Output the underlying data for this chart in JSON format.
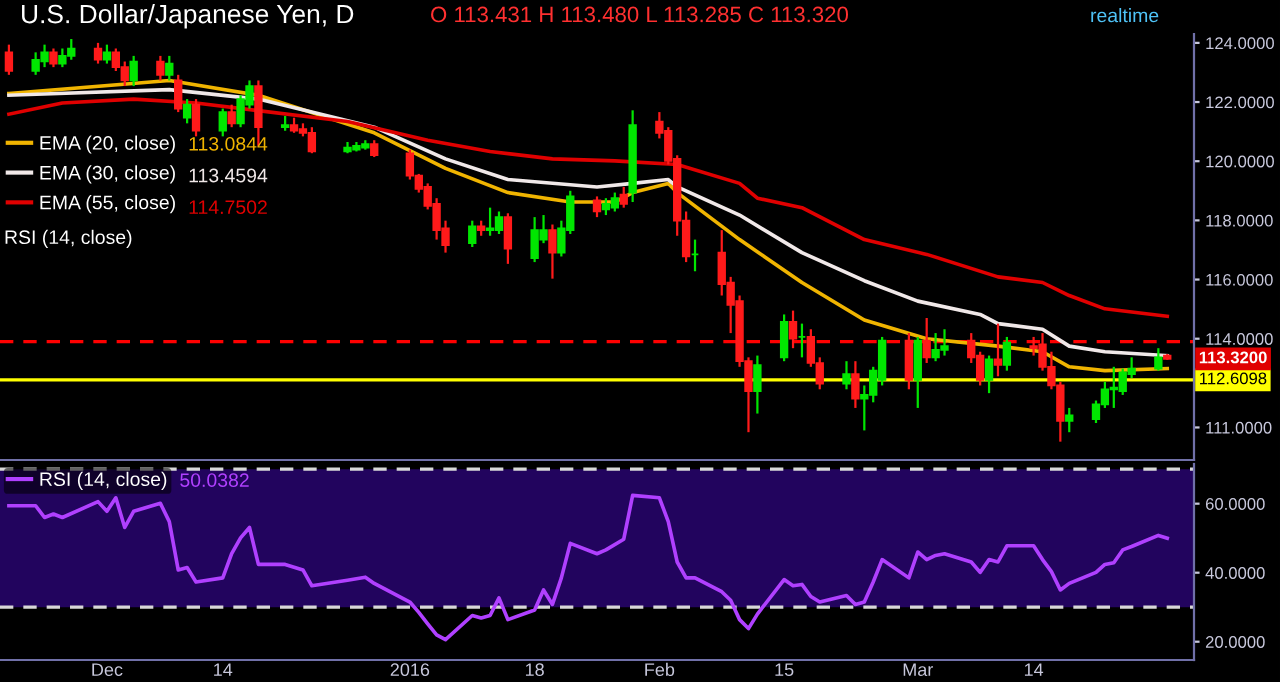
{
  "chart_data": [
    {
      "type": "candlestick",
      "title": "U.S. Dollar/Japanese Yen, D",
      "x": [
        "2015-11-20",
        "2015-11-23",
        "2015-11-24",
        "2015-11-25",
        "2015-11-26",
        "2015-11-27",
        "2015-11-30",
        "2015-12-01",
        "2015-12-02",
        "2015-12-03",
        "2015-12-04",
        "2015-12-07",
        "2015-12-08",
        "2015-12-09",
        "2015-12-10",
        "2015-12-11",
        "2015-12-14",
        "2015-12-15",
        "2015-12-16",
        "2015-12-17",
        "2015-12-18",
        "2015-12-21",
        "2015-12-22",
        "2015-12-23",
        "2015-12-24",
        "2015-12-28",
        "2015-12-29",
        "2015-12-30",
        "2015-12-31",
        "2016-01-04",
        "2016-01-05",
        "2016-01-06",
        "2016-01-07",
        "2016-01-08",
        "2016-01-11",
        "2016-01-12",
        "2016-01-13",
        "2016-01-14",
        "2016-01-15",
        "2016-01-18",
        "2016-01-19",
        "2016-01-20",
        "2016-01-21",
        "2016-01-22",
        "2016-01-25",
        "2016-01-26",
        "2016-01-27",
        "2016-01-28",
        "2016-01-29",
        "2016-02-01",
        "2016-02-02",
        "2016-02-03",
        "2016-02-04",
        "2016-02-05",
        "2016-02-08",
        "2016-02-09",
        "2016-02-10",
        "2016-02-11",
        "2016-02-12",
        "2016-02-15",
        "2016-02-16",
        "2016-02-17",
        "2016-02-18",
        "2016-02-19",
        "2016-02-22",
        "2016-02-23",
        "2016-02-24",
        "2016-02-25",
        "2016-02-26",
        "2016-02-29",
        "2016-03-01",
        "2016-03-02",
        "2016-03-03",
        "2016-03-04",
        "2016-03-07",
        "2016-03-08",
        "2016-03-09",
        "2016-03-10",
        "2016-03-11",
        "2016-03-14",
        "2016-03-15",
        "2016-03-16",
        "2016-03-17",
        "2016-03-18",
        "2016-03-21",
        "2016-03-22",
        "2016-03-23",
        "2016-03-24",
        "2016-03-25",
        "2016-03-28",
        "2016-03-29"
      ],
      "ohlc": [
        [
          123.68,
          123.94,
          122.92,
          123.05
        ],
        [
          123.05,
          123.68,
          122.92,
          123.43
        ],
        [
          123.37,
          123.94,
          123.18,
          123.68
        ],
        [
          123.68,
          123.81,
          123.18,
          123.3
        ],
        [
          123.3,
          123.81,
          123.18,
          123.56
        ],
        [
          123.56,
          124.13,
          123.43,
          123.81
        ],
        [
          123.81,
          124.0,
          123.3,
          123.43
        ],
        [
          123.43,
          123.94,
          123.3,
          123.68
        ],
        [
          123.68,
          123.81,
          123.05,
          123.18
        ],
        [
          123.18,
          123.37,
          122.54,
          122.73
        ],
        [
          122.73,
          123.56,
          122.54,
          123.37
        ],
        [
          123.37,
          123.56,
          122.73,
          122.92
        ],
        [
          122.92,
          123.56,
          122.73,
          123.3
        ],
        [
          122.73,
          122.92,
          121.66,
          121.78
        ],
        [
          121.47,
          122.1,
          121.28,
          121.91
        ],
        [
          121.91,
          122.1,
          120.84,
          121.03
        ],
        [
          121.03,
          121.78,
          120.84,
          121.66
        ],
        [
          121.66,
          121.91,
          121.15,
          121.28
        ],
        [
          121.28,
          122.23,
          121.15,
          122.1
        ],
        [
          121.91,
          122.73,
          121.78,
          122.54
        ],
        [
          122.54,
          122.73,
          120.52,
          121.15
        ],
        [
          121.15,
          121.53,
          121.03,
          121.22
        ],
        [
          121.22,
          121.47,
          120.96,
          121.03
        ],
        [
          121.09,
          121.28,
          120.84,
          120.96
        ],
        [
          120.96,
          121.15,
          120.27,
          120.33
        ],
        [
          120.33,
          120.65,
          120.27,
          120.46
        ],
        [
          120.39,
          120.65,
          120.33,
          120.52
        ],
        [
          120.46,
          120.71,
          120.39,
          120.58
        ],
        [
          120.58,
          120.71,
          120.14,
          120.2
        ],
        [
          120.27,
          120.39,
          119.38,
          119.51
        ],
        [
          119.51,
          119.57,
          118.94,
          119.06
        ],
        [
          119.13,
          119.25,
          118.37,
          118.49
        ],
        [
          118.56,
          118.75,
          117.35,
          117.67
        ],
        [
          117.73,
          117.99,
          116.91,
          117.16
        ],
        [
          117.23,
          117.99,
          117.1,
          117.8
        ],
        [
          117.8,
          117.99,
          117.48,
          117.67
        ],
        [
          117.67,
          118.43,
          117.48,
          117.73
        ],
        [
          117.67,
          118.3,
          117.54,
          118.11
        ],
        [
          118.11,
          118.24,
          116.53,
          117.04
        ],
        [
          116.72,
          118.11,
          116.59,
          117.67
        ],
        [
          117.35,
          118.18,
          117.23,
          117.67
        ],
        [
          117.67,
          117.86,
          116.03,
          116.91
        ],
        [
          116.91,
          117.99,
          116.78,
          117.73
        ],
        [
          117.67,
          119.0,
          117.54,
          118.81
        ],
        [
          118.68,
          118.81,
          118.11,
          118.3
        ],
        [
          118.37,
          118.75,
          118.18,
          118.56
        ],
        [
          118.43,
          118.94,
          118.3,
          118.75
        ],
        [
          118.87,
          119.13,
          118.43,
          118.56
        ],
        [
          118.94,
          121.72,
          118.62,
          121.22
        ],
        [
          121.34,
          121.66,
          120.77,
          120.96
        ],
        [
          121.03,
          121.15,
          119.89,
          120.01
        ],
        [
          120.08,
          120.2,
          117.48,
          117.99
        ],
        [
          117.99,
          118.3,
          116.59,
          116.78
        ],
        [
          116.85,
          117.35,
          116.28,
          116.85
        ],
        [
          116.91,
          117.67,
          115.46,
          115.84
        ],
        [
          115.9,
          116.09,
          114.19,
          115.14
        ],
        [
          115.27,
          115.46,
          113.05,
          113.24
        ],
        [
          113.24,
          113.37,
          110.84,
          112.23
        ],
        [
          112.23,
          113.43,
          111.47,
          113.11
        ],
        [
          113.37,
          114.82,
          113.24,
          114.57
        ],
        [
          114.57,
          114.95,
          113.68,
          114.0
        ],
        [
          114.06,
          114.51,
          113.37,
          114.06
        ],
        [
          114.06,
          114.32,
          113.05,
          113.18
        ],
        [
          113.18,
          113.37,
          112.29,
          112.48
        ],
        [
          112.48,
          113.24,
          112.29,
          112.8
        ],
        [
          112.8,
          113.24,
          111.66,
          111.97
        ],
        [
          111.97,
          112.42,
          110.9,
          112.1
        ],
        [
          112.1,
          113.05,
          111.85,
          112.92
        ],
        [
          112.61,
          114.06,
          112.42,
          113.94
        ],
        [
          113.94,
          114.19,
          112.29,
          112.61
        ],
        [
          112.61,
          114.06,
          111.66,
          113.94
        ],
        [
          113.94,
          114.7,
          113.18,
          113.37
        ],
        [
          113.37,
          114.19,
          113.24,
          113.62
        ],
        [
          113.62,
          114.32,
          113.43,
          113.75
        ],
        [
          113.94,
          114.19,
          113.18,
          113.37
        ],
        [
          113.43,
          113.56,
          112.42,
          112.61
        ],
        [
          112.61,
          113.43,
          112.16,
          113.3
        ],
        [
          113.3,
          114.51,
          112.73,
          113.11
        ],
        [
          113.11,
          114.06,
          112.92,
          113.87
        ],
        [
          113.75,
          114.06,
          113.43,
          113.68
        ],
        [
          113.81,
          114.19,
          112.92,
          113.05
        ],
        [
          113.05,
          113.56,
          112.29,
          112.42
        ],
        [
          112.42,
          112.54,
          110.52,
          111.22
        ],
        [
          111.22,
          111.66,
          110.84,
          111.41
        ],
        [
          111.28,
          111.91,
          111.15,
          111.78
        ],
        [
          111.78,
          112.54,
          111.66,
          112.29
        ],
        [
          112.29,
          113.05,
          111.66,
          112.35
        ],
        [
          112.23,
          112.99,
          112.1,
          112.86
        ],
        [
          112.8,
          113.37,
          112.67,
          112.99
        ],
        [
          112.99,
          113.68,
          112.92,
          113.37
        ],
        [
          113.431,
          113.48,
          113.285,
          113.32
        ]
      ],
      "colors": [
        "#ff1a1a",
        "#00e600",
        "#00e600",
        "#ff1a1a",
        "#00e600",
        "#00e600",
        "#ff1a1a",
        "#00e600",
        "#ff1a1a",
        "#ff1a1a",
        "#00e600",
        "#ff1a1a",
        "#00e600",
        "#ff1a1a",
        "#00e600",
        "#ff1a1a",
        "#00e600",
        "#ff1a1a",
        "#00e600",
        "#00e600",
        "#ff1a1a",
        "#00e600",
        "#ff1a1a",
        "#ff1a1a",
        "#ff1a1a",
        "#00e600",
        "#00e600",
        "#00e600",
        "#ff1a1a",
        "#ff1a1a",
        "#ff1a1a",
        "#ff1a1a",
        "#ff1a1a",
        "#ff1a1a",
        "#00e600",
        "#ff1a1a",
        "#00e600",
        "#00e600",
        "#ff1a1a",
        "#00e600",
        "#00e600",
        "#ff1a1a",
        "#00e600",
        "#00e600",
        "#ff1a1a",
        "#00e600",
        "#00e600",
        "#ff1a1a",
        "#00e600",
        "#ff1a1a",
        "#ff1a1a",
        "#ff1a1a",
        "#ff1a1a",
        "#00e600",
        "#ff1a1a",
        "#ff1a1a",
        "#ff1a1a",
        "#ff1a1a",
        "#00e600",
        "#00e600",
        "#ff1a1a",
        "#00e600",
        "#ff1a1a",
        "#ff1a1a",
        "#00e600",
        "#ff1a1a",
        "#00e600",
        "#00e600",
        "#00e600",
        "#ff1a1a",
        "#00e600",
        "#ff1a1a",
        "#00e600",
        "#00e600",
        "#ff1a1a",
        "#ff1a1a",
        "#00e600",
        "#ff1a1a",
        "#00e600",
        "#ff1a1a",
        "#ff1a1a",
        "#ff1a1a",
        "#ff1a1a",
        "#00e600",
        "#00e600",
        "#00e600",
        "#00e600",
        "#00e600",
        "#00e600",
        "#00e600",
        "#ff1a1a"
      ],
      "series": [
        {
          "name": "EMA (20, close)",
          "type": "line",
          "color": "#f0b400",
          "x": [
            "2015-11-20",
            "2015-12-08",
            "2015-12-18",
            "2015-12-31",
            "2016-01-08",
            "2016-01-15",
            "2016-01-22",
            "2016-01-27",
            "2016-01-29",
            "2016-02-02",
            "2016-02-03",
            "2016-02-10",
            "2016-02-17",
            "2016-02-24",
            "2016-03-02",
            "2016-03-10",
            "2016-03-15",
            "2016-03-18",
            "2016-03-22",
            "2016-03-29"
          ],
          "values": [
            122.29,
            122.73,
            122.23,
            120.96,
            119.76,
            118.94,
            118.62,
            118.62,
            118.94,
            119.25,
            118.94,
            117.35,
            115.9,
            114.63,
            114.0,
            113.75,
            113.56,
            113.05,
            112.92,
            112.99
          ]
        },
        {
          "name": "EMA (30, close)",
          "type": "line",
          "color": "#f0e8e8",
          "x": [
            "2015-11-20",
            "2015-12-08",
            "2015-12-18",
            "2015-12-31",
            "2016-01-08",
            "2016-01-15",
            "2016-01-25",
            "2016-01-29",
            "2016-02-02",
            "2016-02-03",
            "2016-02-10",
            "2016-02-17",
            "2016-02-24",
            "2016-03-01",
            "2016-03-08",
            "2016-03-10",
            "2016-03-15",
            "2016-03-18",
            "2016-03-22",
            "2016-03-29"
          ],
          "values": [
            122.23,
            122.42,
            122.1,
            121.15,
            120.08,
            119.38,
            119.13,
            119.25,
            119.38,
            119.13,
            118.18,
            116.91,
            115.96,
            115.27,
            114.82,
            114.51,
            114.32,
            113.75,
            113.56,
            113.43
          ]
        },
        {
          "name": "EMA (55, close)",
          "type": "line",
          "color": "#e00000",
          "x": [
            "2015-11-20",
            "2015-11-26",
            "2015-12-04",
            "2015-12-11",
            "2015-12-28",
            "2016-01-06",
            "2016-01-13",
            "2016-01-20",
            "2016-01-27",
            "2016-02-03",
            "2016-02-10",
            "2016-02-12",
            "2016-02-17",
            "2016-02-24",
            "2016-03-02",
            "2016-03-10",
            "2016-03-15",
            "2016-03-18",
            "2016-03-22",
            "2016-03-29"
          ],
          "values": [
            121.59,
            121.97,
            122.1,
            121.97,
            121.34,
            120.71,
            120.33,
            120.08,
            120.01,
            119.89,
            119.25,
            118.75,
            118.43,
            117.35,
            116.85,
            116.09,
            115.9,
            115.46,
            115.01,
            114.76
          ]
        }
      ],
      "annotations": [
        "O 113.431 H 113.480 L 113.285 C 113.320",
        "realtime",
        "113.0844",
        "113.4594",
        "114.7502",
        "RSI (14, close)",
        "113.3200"
      ],
      "ref_lines": [
        {
          "axis": "y",
          "value": 113.9,
          "color": "#ff0000",
          "line_style": "dashed"
        },
        {
          "axis": "y",
          "value": 112.6098,
          "label": "112.6098",
          "color": "#ffff00",
          "line_style": "solid"
        }
      ],
      "xlim": [
        "2015-11-19",
        "2016-04-01"
      ],
      "ylim": [
        109.9,
        124.3
      ],
      "yticks": [
        {
          "value": 111,
          "label": "111.0000"
        },
        {
          "value": 114,
          "label": "114.0000"
        },
        {
          "value": 116,
          "label": "116.0000"
        },
        {
          "value": 118,
          "label": "118.0000"
        },
        {
          "value": 120,
          "label": "120.0000"
        },
        {
          "value": 122,
          "label": "122.0000"
        },
        {
          "value": 124,
          "label": "124.0000"
        }
      ],
      "tick_labels": "y",
      "legend": "top left"
    },
    {
      "type": "line",
      "series": [
        {
          "name": "RSI (14, close)",
          "color": "#b040ff",
          "x": [
            "2015-11-20",
            "2015-11-23",
            "2015-11-24",
            "2015-11-25",
            "2015-11-26",
            "2015-11-30",
            "2015-12-01",
            "2015-12-02",
            "2015-12-03",
            "2015-12-04",
            "2015-12-07",
            "2015-12-08",
            "2015-12-09",
            "2015-12-10",
            "2015-12-11",
            "2015-12-14",
            "2015-12-15",
            "2015-12-16",
            "2015-12-17",
            "2015-12-18",
            "2015-12-21",
            "2015-12-23",
            "2015-12-24",
            "2015-12-28",
            "2015-12-30",
            "2015-12-31",
            "2016-01-04",
            "2016-01-05",
            "2016-01-06",
            "2016-01-07",
            "2016-01-08",
            "2016-01-11",
            "2016-01-12",
            "2016-01-13",
            "2016-01-14",
            "2016-01-15",
            "2016-01-18",
            "2016-01-19",
            "2016-01-20",
            "2016-01-21",
            "2016-01-22",
            "2016-01-25",
            "2016-01-26",
            "2016-01-28",
            "2016-01-29",
            "2016-02-01",
            "2016-02-02",
            "2016-02-03",
            "2016-02-04",
            "2016-02-05",
            "2016-02-08",
            "2016-02-09",
            "2016-02-10",
            "2016-02-11",
            "2016-02-12",
            "2016-02-15",
            "2016-02-16",
            "2016-02-17",
            "2016-02-18",
            "2016-02-19",
            "2016-02-22",
            "2016-02-23",
            "2016-02-24",
            "2016-02-25",
            "2016-02-26",
            "2016-02-29",
            "2016-03-01",
            "2016-03-02",
            "2016-03-03",
            "2016-03-04",
            "2016-03-07",
            "2016-03-08",
            "2016-03-09",
            "2016-03-10",
            "2016-03-11",
            "2016-03-14",
            "2016-03-15",
            "2016-03-16",
            "2016-03-17",
            "2016-03-18",
            "2016-03-21",
            "2016-03-22",
            "2016-03-23",
            "2016-03-24",
            "2016-03-25",
            "2016-03-28",
            "2016-03-29"
          ],
          "values": [
            59.4,
            59.4,
            56.0,
            57.0,
            56.0,
            60.6,
            57.8,
            61.7,
            53.1,
            57.8,
            60.1,
            54.8,
            40.8,
            41.5,
            37.3,
            38.5,
            45.5,
            50.1,
            53.1,
            42.4,
            42.4,
            40.8,
            36.2,
            37.8,
            38.7,
            36.9,
            31.5,
            28.5,
            25.2,
            22.0,
            20.6,
            27.6,
            26.9,
            27.6,
            32.7,
            26.4,
            29.2,
            35.0,
            30.8,
            38.5,
            48.5,
            45.5,
            46.6,
            49.7,
            62.4,
            61.7,
            54.8,
            43.1,
            38.5,
            38.5,
            34.5,
            32.0,
            26.4,
            23.8,
            28.0,
            38.0,
            36.2,
            36.6,
            33.1,
            31.5,
            33.4,
            30.8,
            31.5,
            37.3,
            43.8,
            38.5,
            46.0,
            43.8,
            45.0,
            45.5,
            43.1,
            40.1,
            43.8,
            43.1,
            47.8,
            47.8,
            43.8,
            40.3,
            35.0,
            36.9,
            40.1,
            42.4,
            42.9,
            46.6,
            47.6,
            50.8,
            50.0
          ]
        }
      ],
      "annotations": [
        "50.0382"
      ],
      "bands": [
        {
          "axis": "y",
          "from": 30,
          "to": 70,
          "color": "#22045e"
        }
      ],
      "ref_lines": [
        {
          "axis": "y",
          "value": 30,
          "color": "#d8d8d8",
          "line_style": "dashed"
        },
        {
          "axis": "y",
          "value": 70,
          "color": "#d8d8d8",
          "line_style": "dashed"
        }
      ],
      "xlim": [
        "2015-11-19",
        "2016-04-01"
      ],
      "ylim": [
        14.7,
        71.5
      ],
      "xticks": [
        {
          "value": "2015-12-01",
          "label": "Dec"
        },
        {
          "value": "2015-12-14",
          "label": "14"
        },
        {
          "value": "2016-01-04",
          "label": "2016"
        },
        {
          "value": "2016-01-18",
          "label": "18"
        },
        {
          "value": "2016-02-01",
          "label": "Feb"
        },
        {
          "value": "2016-02-15",
          "label": "15"
        },
        {
          "value": "2016-03-01",
          "label": "Mar"
        },
        {
          "value": "2016-03-14",
          "label": "14"
        }
      ],
      "yticks": [
        {
          "value": 20,
          "label": "20.0000"
        },
        {
          "value": 40,
          "label": "40.0000"
        },
        {
          "value": 60,
          "label": "60.0000"
        }
      ],
      "legend": "top left"
    }
  ]
}
